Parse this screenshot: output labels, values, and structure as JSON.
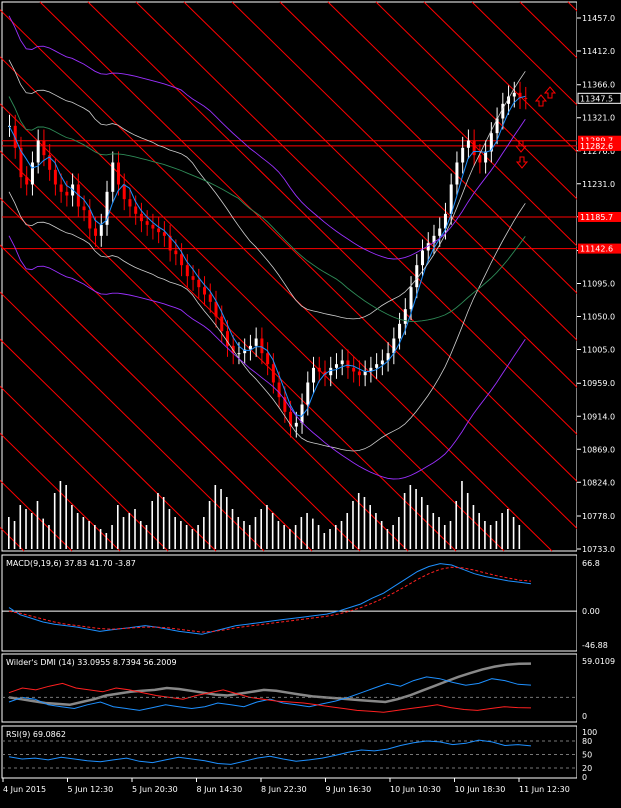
{
  "colors": {
    "background": "#000000",
    "frame": "#ffffff",
    "channel": "#ff0000",
    "level_line": "#ff0000",
    "bull_candle": "#ffffff",
    "bear_candle": "#ff0000",
    "volume": "#ffffff",
    "ma_fast": "#1e90ff",
    "bb_outer": "#cfcfcf",
    "env_purple": "#9b30ff",
    "ma_slow": "#2e8b57",
    "macd_main": "#1e90ff",
    "macd_signal": "#ff2020",
    "dmi_adx": "#888888",
    "dmi_plus": "#1e90ff",
    "dmi_minus": "#ff2020",
    "rsi": "#1e90ff"
  },
  "chart_data": [
    {
      "type": "candlestick",
      "panel": "price",
      "y_ticks": [
        "11457.0",
        "11412.0",
        "11366.0",
        "11321.0",
        "11276.0",
        "11231.0",
        "11186.0",
        "11140.0",
        "11095.0",
        "11050.0",
        "11005.0",
        "10959.0",
        "10914.0",
        "10869.0",
        "10824.0",
        "10778.0",
        "10733.0"
      ],
      "ylim": [
        10733.0,
        11457.0
      ],
      "price_labels": [
        {
          "text": "11347.5",
          "value": 11347.5,
          "style": "current"
        },
        {
          "text": "11289.7",
          "value": 11289.7,
          "style": "level"
        },
        {
          "text": "11282.6",
          "value": 11282.6,
          "style": "level"
        },
        {
          "text": "11185.7",
          "value": 11185.7,
          "style": "level"
        },
        {
          "text": "11142.6",
          "value": 11142.6,
          "style": "level"
        }
      ],
      "horizontal_levels": [
        11289.7,
        11282.6,
        11185.7,
        11142.6
      ],
      "close_path": [
        11310,
        11280,
        11240,
        11230,
        11260,
        11290,
        11270,
        11250,
        11230,
        11220,
        11215,
        11230,
        11200,
        11195,
        11170,
        11160,
        11175,
        11220,
        11260,
        11230,
        11210,
        11200,
        11190,
        11180,
        11175,
        11170,
        11165,
        11160,
        11140,
        11135,
        11120,
        11105,
        11100,
        11090,
        11080,
        11070,
        11050,
        11030,
        11010,
        11000,
        11000,
        11005,
        11010,
        11020,
        11000,
        10985,
        10960,
        10940,
        10920,
        10900,
        10905,
        10930,
        10960,
        10980,
        10975,
        10970,
        10980,
        10985,
        10990,
        10980,
        10975,
        10970,
        10975,
        10980,
        10985,
        10990,
        11000,
        11020,
        11040,
        11060,
        11090,
        11120,
        11140,
        11150,
        11160,
        11170,
        11190,
        11230,
        11260,
        11280,
        11290,
        11270,
        11260,
        11275,
        11300,
        11320,
        11340,
        11350,
        11355,
        11348,
        11347.5
      ],
      "volume_path": [
        40,
        35,
        55,
        50,
        45,
        60,
        38,
        30,
        70,
        85,
        80,
        55,
        45,
        40,
        35,
        30,
        25,
        20,
        30,
        55,
        40,
        45,
        50,
        35,
        30,
        60,
        70,
        65,
        50,
        40,
        35,
        30,
        25,
        30,
        40,
        60,
        80,
        75,
        65,
        50,
        40,
        35,
        30,
        40,
        50,
        55,
        45,
        35,
        30,
        25,
        30,
        40,
        45,
        38,
        30,
        20,
        25,
        30,
        35,
        45,
        60,
        70,
        65,
        55,
        45,
        35,
        25,
        30,
        40,
        70,
        80,
        75,
        65,
        55,
        45,
        40,
        30,
        35,
        60,
        85,
        70,
        55,
        45,
        35,
        30,
        35,
        45,
        50,
        40,
        30
      ],
      "macd": {
        "label": "MACD(9,19,6) 37.83 41.70 -3.87",
        "y_ticks": [
          "66.8",
          "0.00",
          "-46.88"
        ],
        "ylim": [
          -46.88,
          66.8
        ],
        "main": [
          5,
          -5,
          -10,
          -15,
          -18,
          -20,
          -22,
          -25,
          -28,
          -26,
          -24,
          -22,
          -20,
          -22,
          -25,
          -28,
          -30,
          -32,
          -28,
          -24,
          -20,
          -18,
          -16,
          -14,
          -12,
          -10,
          -8,
          -6,
          -4,
          0,
          5,
          10,
          18,
          25,
          35,
          45,
          55,
          62,
          66,
          64,
          58,
          52,
          48,
          45,
          42,
          40,
          38
        ],
        "signal": [
          0,
          -3,
          -7,
          -11,
          -15,
          -18,
          -20,
          -22,
          -24,
          -25,
          -24,
          -23,
          -22,
          -22,
          -23,
          -25,
          -27,
          -29,
          -28,
          -26,
          -23,
          -21,
          -19,
          -17,
          -15,
          -13,
          -11,
          -9,
          -7,
          -4,
          0,
          5,
          11,
          18,
          26,
          35,
          44,
          52,
          58,
          61,
          60,
          57,
          53,
          49,
          46,
          43,
          41.7
        ]
      },
      "dmi": {
        "label": "Wilder's DMI (14) 33.0955 8.7394 56.2009",
        "y_ticks": [
          "59.0109",
          "0"
        ],
        "ylim": [
          0,
          59.0109
        ],
        "adx": [
          20,
          18,
          16,
          14,
          13,
          12,
          15,
          18,
          22,
          24,
          26,
          27,
          28,
          30,
          29,
          27,
          25,
          23,
          22,
          24,
          26,
          28,
          27,
          25,
          23,
          21,
          20,
          19,
          18,
          17,
          16,
          15,
          18,
          22,
          27,
          32,
          37,
          42,
          46,
          50,
          53,
          55,
          56,
          56.2
        ],
        "plus_di": [
          15,
          20,
          18,
          12,
          10,
          8,
          12,
          15,
          10,
          8,
          6,
          9,
          12,
          10,
          8,
          10,
          14,
          12,
          10,
          15,
          18,
          14,
          12,
          10,
          13,
          16,
          20,
          25,
          30,
          35,
          32,
          38,
          42,
          40,
          36,
          33,
          35,
          40,
          38,
          34,
          33.1
        ],
        "minus_di": [
          25,
          30,
          28,
          32,
          35,
          30,
          28,
          26,
          30,
          28,
          25,
          22,
          20,
          18,
          22,
          25,
          28,
          24,
          20,
          18,
          16,
          15,
          14,
          12,
          10,
          8,
          6,
          5,
          4,
          6,
          8,
          10,
          12,
          9,
          7,
          6,
          8,
          10,
          9,
          8.7
        ]
      },
      "rsi": {
        "label": "RSI(9) 69.0862",
        "y_ticks": [
          "100",
          "80",
          "50",
          "20",
          "0"
        ],
        "ylim": [
          0,
          100
        ],
        "levels": [
          80,
          50,
          20
        ],
        "values": [
          45,
          40,
          42,
          38,
          44,
          40,
          36,
          34,
          38,
          42,
          35,
          32,
          38,
          44,
          40,
          36,
          30,
          28,
          35,
          42,
          46,
          40,
          35,
          38,
          42,
          48,
          55,
          60,
          58,
          62,
          70,
          76,
          80,
          78,
          72,
          75,
          82,
          78,
          70,
          72,
          69.1
        ]
      },
      "x_tick_labels": [
        "4 Jun 2015",
        "5 Jun 12:30",
        "5 Jun 20:30",
        "8 Jun 14:30",
        "8 Jun 22:30",
        "9 Jun 16:30",
        "10 Jun 10:30",
        "10 Jun 18:30",
        "11 Jun 12:30"
      ]
    }
  ]
}
